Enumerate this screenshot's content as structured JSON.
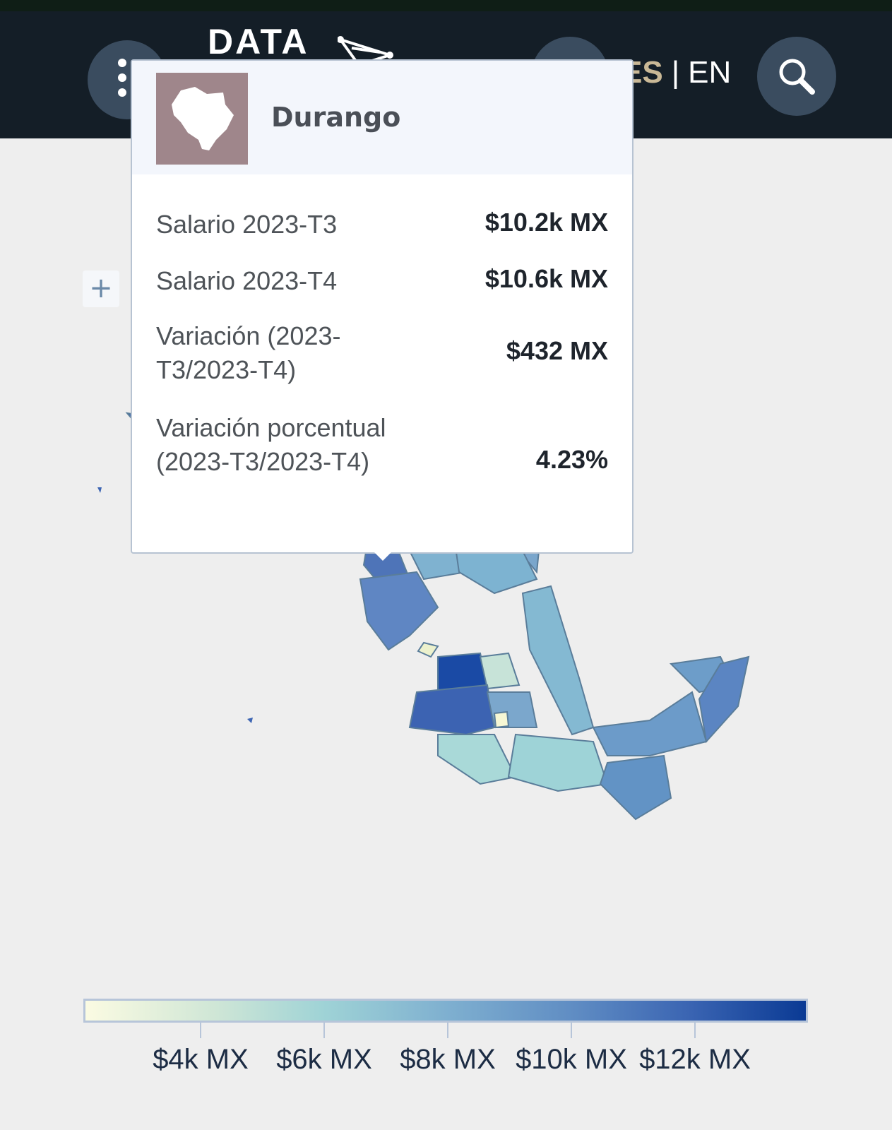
{
  "header": {
    "logo_text": "DATA",
    "lang_es": "ES",
    "lang_sep": "|",
    "lang_en": "EN"
  },
  "map_controls": {
    "zoom_in_label": "+"
  },
  "tooltip": {
    "state_name": "Durango",
    "rows": [
      {
        "label": "Salario 2023-T3",
        "value": "$10.2k MX"
      },
      {
        "label": "Salario 2023-T4",
        "value": "$10.6k MX"
      },
      {
        "label": "Variación (2023-T3/2023-T4)",
        "value": "$432 MX"
      },
      {
        "label": "Variación porcentual (2023-T3/2023-T4)",
        "value": "4.23%"
      }
    ]
  },
  "legend": {
    "ticks": [
      "$4k MX",
      "$6k MX",
      "$8k MX",
      "$10k MX",
      "$12k MX"
    ]
  },
  "colors": {
    "header_bg": "#141e27",
    "button_bg": "#3a4c5f",
    "accent_es": "#c9b896",
    "map_high": "#0a3a94",
    "map_low": "#fbfbe2",
    "tooltip_thumb": "#9f868b"
  },
  "icons": {
    "menu": "kebab-menu-icon",
    "search": "search-icon",
    "logo_mark": "network-constellation-icon",
    "state": "durango-silhouette-icon"
  }
}
